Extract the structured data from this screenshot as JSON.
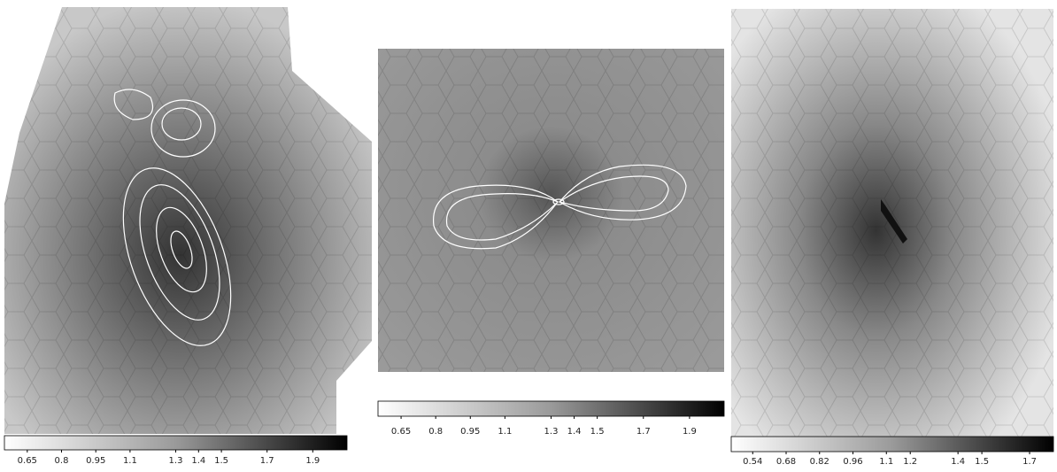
{
  "chart_data": [
    {
      "type": "image",
      "xlim": [
        0.55,
        2.05
      ],
      "xticks": [
        0.65,
        0.8,
        0.95,
        1.1,
        1.3,
        1.4,
        1.5,
        1.7,
        1.9
      ]
    },
    {
      "type": "image",
      "xlim": [
        0.55,
        2.05
      ],
      "xticks": [
        0.65,
        0.8,
        0.95,
        1.1,
        1.3,
        1.4,
        1.5,
        1.7,
        1.9
      ]
    },
    {
      "type": "image",
      "xlim": [
        0.45,
        1.8
      ],
      "xticks": [
        0.54,
        0.68,
        0.82,
        0.96,
        1.1,
        1.2,
        1.4,
        1.5,
        1.7
      ]
    }
  ]
}
